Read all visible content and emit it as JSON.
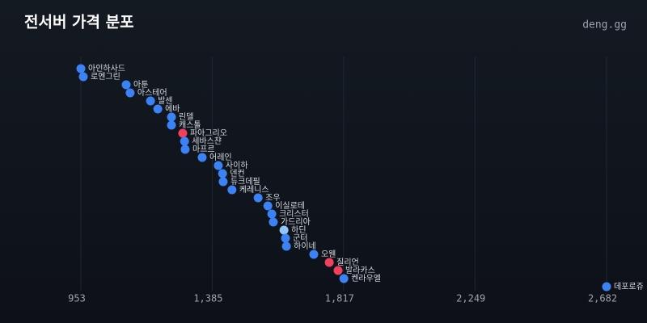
{
  "chart_data": {
    "type": "dot",
    "title": "전서버 가격 분포",
    "brand": "deng.gg",
    "categories": [
      "아인하사드",
      "로엔그린",
      "아툰",
      "아스테어",
      "발센",
      "에바",
      "린델",
      "캐스톨",
      "파아그리오",
      "세바스챤",
      "마프르",
      "어레인",
      "사이하",
      "덴컨",
      "듀크데필",
      "케레니스",
      "조우",
      "이실로테",
      "크리스터",
      "가드리아",
      "하딘",
      "군터",
      "하이네",
      "오웬",
      "질리언",
      "발라카스",
      "켄라우엘",
      "데포로쥬"
    ],
    "values": [
      953,
      961,
      1102,
      1115,
      1182,
      1206,
      1251,
      1251,
      1288,
      1294,
      1296,
      1352,
      1405,
      1419,
      1421,
      1450,
      1536,
      1568,
      1581,
      1586,
      1621,
      1626,
      1629,
      1719,
      1770,
      1799,
      1818,
      2682
    ],
    "colors": [
      "#3b82f6",
      "#3b82f6",
      "#3b82f6",
      "#3b82f6",
      "#3b82f6",
      "#3b82f6",
      "#3b82f6",
      "#3b82f6",
      "#f43f5e",
      "#3b82f6",
      "#3b82f6",
      "#3b82f6",
      "#3b82f6",
      "#3b82f6",
      "#3b82f6",
      "#3b82f6",
      "#3b82f6",
      "#3b82f6",
      "#3b82f6",
      "#3b82f6",
      "#93c5fd",
      "#3b82f6",
      "#3b82f6",
      "#3b82f6",
      "#f43f5e",
      "#f43f5e",
      "#3b82f6",
      "#3b82f6"
    ],
    "xlim": [
      953,
      2682
    ],
    "xticks": [
      953,
      {
        "value": 1385,
        "label": "1,385"
      },
      {
        "value": 1817,
        "label": "1,817"
      },
      {
        "value": 2249,
        "label": "2,249"
      },
      {
        "value": 2682,
        "label": "2,682"
      }
    ],
    "grid": true
  }
}
